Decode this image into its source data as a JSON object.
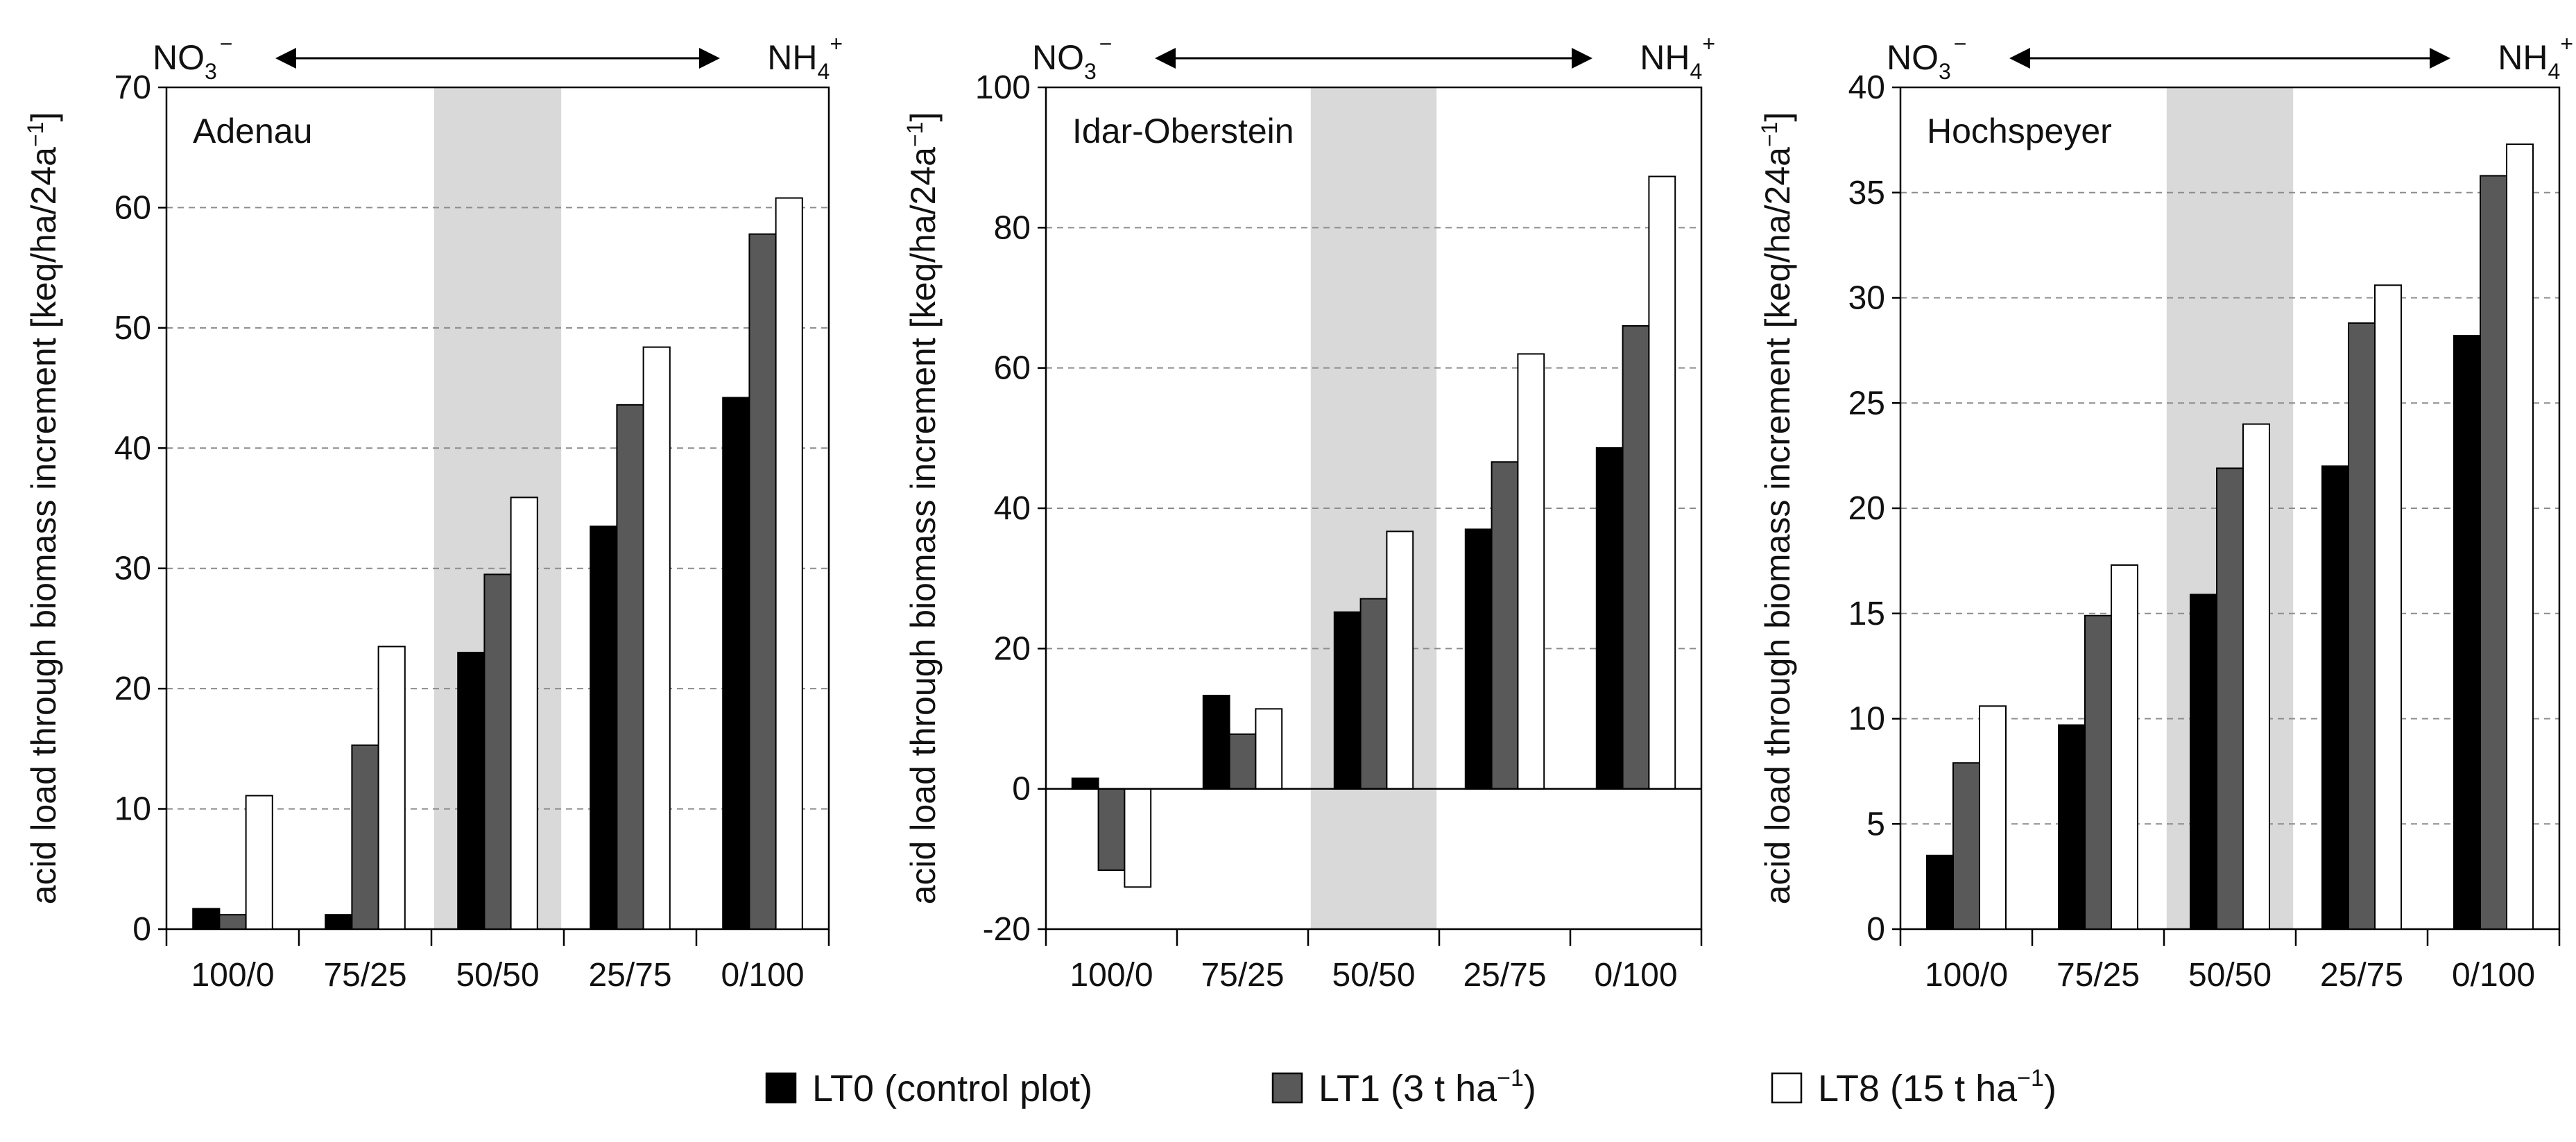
{
  "chart_data": [
    {
      "type": "bar",
      "title": "Adenau",
      "ylabel": "acid load through biomass increment [keq/ha/24a",
      "ylabel_unit_sup": "−1",
      "ylabel_close": "]",
      "categories": [
        "100/0",
        "75/25",
        "50/50",
        "25/75",
        "0/100"
      ],
      "ylim": [
        0,
        70
      ],
      "yticks": [
        0,
        10,
        20,
        30,
        40,
        50,
        60,
        70
      ],
      "grid": "horizontal-dashed",
      "highlight_category": "50/50",
      "series": [
        {
          "name": "LT0 (control plot)",
          "values": [
            1.7,
            1.2,
            23.0,
            33.5,
            44.2
          ]
        },
        {
          "name": "LT1 (3 t ha−1)",
          "values": [
            1.2,
            15.3,
            29.5,
            43.6,
            57.8
          ]
        },
        {
          "name": "LT8 (15 t ha−1)",
          "values": [
            11.1,
            23.5,
            35.9,
            48.4,
            60.8
          ]
        }
      ]
    },
    {
      "type": "bar",
      "title": "Idar-Oberstein",
      "ylabel": "acid load through biomass increment [keq/ha/24a",
      "ylabel_unit_sup": "−1",
      "ylabel_close": "]",
      "categories": [
        "100/0",
        "75/25",
        "50/50",
        "25/75",
        "0/100"
      ],
      "ylim": [
        -20,
        100
      ],
      "yticks": [
        -20,
        0,
        20,
        40,
        60,
        80,
        100
      ],
      "grid": "horizontal-dashed",
      "highlight_category": "50/50",
      "series": [
        {
          "name": "LT0 (control plot)",
          "values": [
            1.5,
            13.3,
            25.2,
            37.0,
            48.6
          ]
        },
        {
          "name": "LT1 (3 t ha−1)",
          "values": [
            -11.6,
            7.8,
            27.1,
            46.6,
            66.0
          ]
        },
        {
          "name": "LT8 (15 t ha−1)",
          "values": [
            -14.0,
            11.4,
            36.7,
            62.0,
            87.3
          ]
        }
      ]
    },
    {
      "type": "bar",
      "title": "Hochspeyer",
      "ylabel": "acid load through biomass increment [keq/ha/24a",
      "ylabel_unit_sup": "−1",
      "ylabel_close": "]",
      "categories": [
        "100/0",
        "75/25",
        "50/50",
        "25/75",
        "0/100"
      ],
      "ylim": [
        0,
        40
      ],
      "yticks": [
        0,
        5,
        10,
        15,
        20,
        25,
        30,
        35,
        40
      ],
      "grid": "horizontal-dashed",
      "highlight_category": "50/50",
      "series": [
        {
          "name": "LT0 (control plot)",
          "values": [
            3.5,
            9.7,
            15.9,
            22.0,
            28.2
          ]
        },
        {
          "name": "LT1 (3 t ha−1)",
          "values": [
            7.9,
            14.9,
            21.9,
            28.8,
            35.8
          ]
        },
        {
          "name": "LT8 (15 t ha−1)",
          "values": [
            10.6,
            17.3,
            24.0,
            30.6,
            37.3
          ]
        }
      ]
    }
  ],
  "ion_labels": {
    "left_base": "NO",
    "left_sub": "3",
    "left_sup": "−",
    "right_base": "NH",
    "right_sub": "4",
    "right_sup": "+"
  },
  "legend": {
    "placement": "bottom",
    "items": [
      {
        "base": "LT0 (control plot)",
        "sup": "",
        "close": "",
        "color": "#000000"
      },
      {
        "base": "LT1 (3 t ha",
        "sup": "−1",
        "close": ")",
        "color": "#595959"
      },
      {
        "base": "LT8 (15 t ha",
        "sup": "−1",
        "close": ")",
        "color": "#ffffff"
      }
    ]
  },
  "colors": {
    "series": [
      "#000000",
      "#595959",
      "#ffffff"
    ],
    "highlight": "#d9d9d9",
    "grid": "#8c8c8c",
    "axis": "#000000"
  }
}
